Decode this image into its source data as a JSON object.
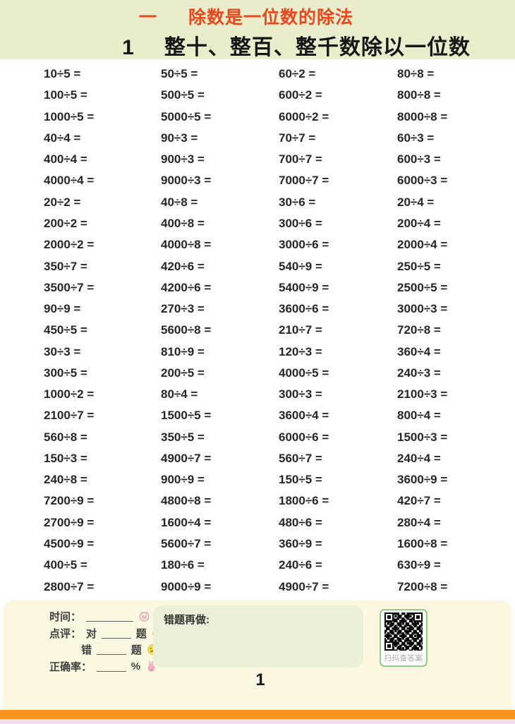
{
  "header": {
    "unit_number": "一",
    "unit_title": "除数是一位数的除法",
    "lesson_number": "1",
    "lesson_title": "整十、整百、整千数除以一位数"
  },
  "problems": {
    "rows": [
      [
        "10÷5 =",
        "50÷5 =",
        "60÷2 =",
        "80÷8 ="
      ],
      [
        "100÷5 =",
        "500÷5 =",
        "600÷2 =",
        "800÷8 ="
      ],
      [
        "1000÷5 =",
        "5000÷5 =",
        "6000÷2 =",
        "8000÷8 ="
      ],
      [
        "40÷4 =",
        "90÷3 =",
        "70÷7 =",
        "60÷3 ="
      ],
      [
        "400÷4 =",
        "900÷3 =",
        "700÷7 =",
        "600÷3 ="
      ],
      [
        "4000÷4 =",
        "9000÷3 =",
        "7000÷7 =",
        "6000÷3 ="
      ],
      [
        "20÷2 =",
        "40÷8 =",
        "30÷6 =",
        "20÷4 ="
      ],
      [
        "200÷2 =",
        "400÷8 =",
        "300÷6 =",
        "200÷4 ="
      ],
      [
        "2000÷2 =",
        "4000÷8 =",
        "3000÷6 =",
        "2000÷4 ="
      ],
      [
        "350÷7 =",
        "420÷6 =",
        "540÷9 =",
        "250÷5 ="
      ],
      [
        "3500÷7 =",
        "4200÷6 =",
        "5400÷9 =",
        "2500÷5 ="
      ],
      [
        "90÷9 =",
        "270÷3 =",
        "3600÷6 =",
        "3000÷3 ="
      ],
      [
        "450÷5 =",
        "5600÷8 =",
        "210÷7 =",
        "720÷8 ="
      ],
      [
        "30÷3 =",
        "810÷9 =",
        "120÷3 =",
        "360÷4 ="
      ],
      [
        "300÷5 =",
        "200÷5 =",
        "4000÷5 =",
        "240÷3 ="
      ],
      [
        "1000÷2 =",
        "80÷4 =",
        "300÷3 =",
        "2100÷3 ="
      ],
      [
        "2100÷7 =",
        "1500÷5 =",
        "3600÷4 =",
        "800÷4 ="
      ],
      [
        "560÷8 =",
        "350÷5 =",
        "6000÷6 =",
        "1500÷3 ="
      ],
      [
        "150÷3 =",
        "4900÷7 =",
        "560÷7 =",
        "240÷4 ="
      ],
      [
        "240÷8 =",
        "900÷9 =",
        "150÷5 =",
        "3600÷9 ="
      ],
      [
        "7200÷9 =",
        "4800÷8 =",
        "1800÷6 =",
        "420÷7 ="
      ],
      [
        "2700÷9 =",
        "1600÷4 =",
        "480÷6 =",
        "280÷4 ="
      ],
      [
        "4500÷9 =",
        "5600÷7 =",
        "360÷9 =",
        "1600÷8 ="
      ],
      [
        "400÷5 =",
        "180÷6 =",
        "240÷6 =",
        "630÷9 ="
      ],
      [
        "2800÷7 =",
        "9000÷9 =",
        "4900÷7 =",
        "7200÷8 ="
      ]
    ]
  },
  "footer": {
    "time_label": "时间：",
    "time_blank": "________",
    "review_label": "点评：",
    "correct_prefix": "对",
    "correct_blank": "_____",
    "correct_unit": "题",
    "wrong_prefix": "错",
    "wrong_blank": "_____",
    "wrong_unit": "题",
    "accuracy_label": "正确率：",
    "accuracy_blank": "_____",
    "accuracy_unit": "%",
    "redo_title": "错题再做:",
    "qr_caption": "扫码查答案",
    "page_number": "1"
  },
  "icons": {
    "time": "pig-icon",
    "correct": "happy-face-icon",
    "wrong": "sad-face-icon",
    "accuracy": "rabbit-icon",
    "qr": "qr-code"
  },
  "colors": {
    "header_bg": "#e9edcb",
    "unit_title_red": "#e8481d",
    "footer_bg": "#fbf7e0",
    "redo_box_green": "#eaf1d8",
    "qr_border_green": "#8ed084",
    "stripe_orange": "#f7941e",
    "stripe_pink": "#f5dcea"
  }
}
